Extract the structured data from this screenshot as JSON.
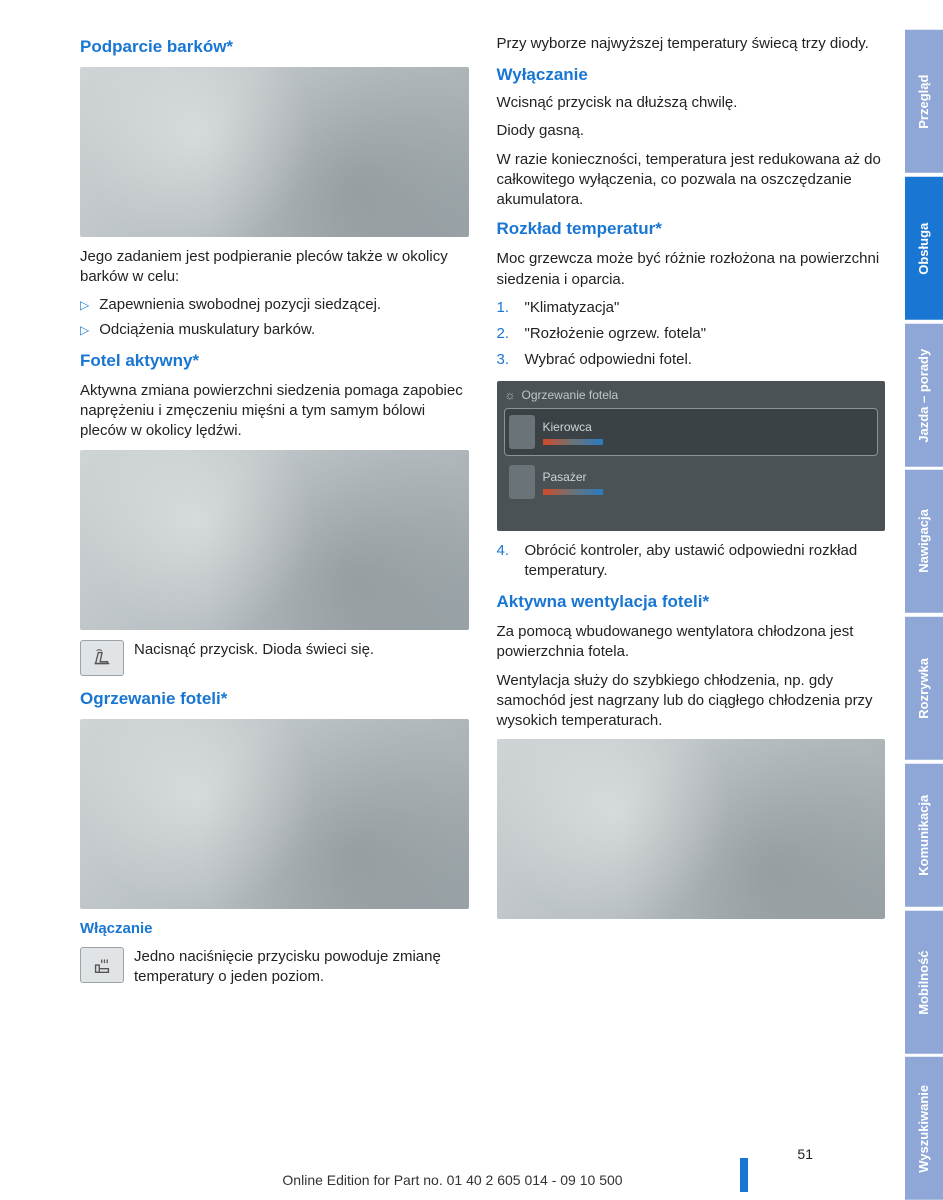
{
  "colors": {
    "heading_blue": "#1976d2",
    "tab_active": "#1976d2",
    "tab_inactive": "#8ea7d6",
    "text": "#222222"
  },
  "tabs": [
    {
      "label": "Przegląd",
      "active": false
    },
    {
      "label": "Obsługa",
      "active": true
    },
    {
      "label": "Jazda – porady",
      "active": false
    },
    {
      "label": "Nawigacja",
      "active": false
    },
    {
      "label": "Rozrywka",
      "active": false
    },
    {
      "label": "Komunikacja",
      "active": false
    },
    {
      "label": "Mobilność",
      "active": false
    },
    {
      "label": "Wyszukiwanie",
      "active": false
    }
  ],
  "left": {
    "h1": "Podparcie barków*",
    "p1": "Jego zadaniem jest podpieranie pleców także w okolicy barków w celu:",
    "bullets": [
      "Zapewnienia swobodnej pozycji siedzącej.",
      "Odciążenia muskulatury barków."
    ],
    "h2": "Fotel aktywny*",
    "p2": "Aktywna zmiana powierzchni siedzenia pomaga zapobiec naprężeniu i zmęczeniu mięśni a tym samym bólowi pleców w okolicy lędźwi.",
    "icon_text": "Nacisnąć przycisk. Dioda świeci się.",
    "h3": "Ogrzewanie foteli*",
    "h4": "Włączanie",
    "icon_text2": "Jedno naciśnięcie przycisku powoduje zmianę temperatury o jeden poziom."
  },
  "right": {
    "p0": "Przy wyborze najwyższej temperatury świecą trzy diody.",
    "h1": "Wyłączanie",
    "p1a": "Wcisnąć przycisk na dłuższą chwilę.",
    "p1b": "Diody gasną.",
    "p1c": "W razie konieczności, temperatura jest reduko­wana aż do całkowitego wyłączenia, co pozwala na oszczędzanie akumulatora.",
    "h2": "Rozkład temperatur*",
    "p2": "Moc grzewcza może być różnie rozłożona na powierzchni siedzenia i oparcia.",
    "steps": [
      "\"Klimatyzacja\"",
      "\"Rozłożenie ogrzew. fotela\"",
      "Wybrać odpowiedni fotel."
    ],
    "screen": {
      "title": "Ogrzewanie fotela",
      "opt1": "Kierowca",
      "opt2": "Pasażer"
    },
    "step4": "Obrócić kontroler, aby ustawić odpowiedni rozkład temperatury.",
    "h3": "Aktywna wentylacja foteli*",
    "p3a": "Za pomocą wbudowanego wentylatora chło­dzona jest powierzchnia fotela.",
    "p3b": "Wentylacja służy do szybkiego chłodzenia, np. gdy samochód jest nagrzany lub do ciągłego chłodzenia przy wysokich temperaturach."
  },
  "page_number": "51",
  "footer": "Online Edition for Part no. 01 40 2 605 014 - 09 10 500"
}
